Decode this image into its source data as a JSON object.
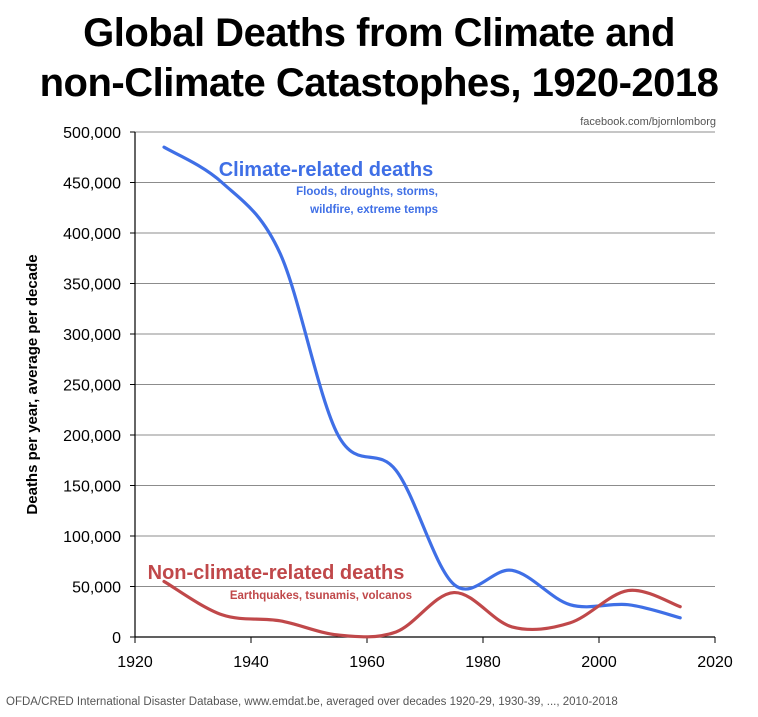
{
  "chart_data": {
    "type": "line",
    "title": "Global Deaths from Climate and non-Climate Catastophes, 1920-2018",
    "credit": "facebook.com/bjornlomborg",
    "source": "OFDA/CRED International Disaster Database, www.emdat.be, averaged over decades 1920-29, 1930-39, ..., 2010-2018",
    "ylabel": "Deaths per year, average per decade",
    "xlabel": "",
    "xlim": [
      1920,
      2020
    ],
    "ylim": [
      0,
      500000
    ],
    "x_ticks": [
      1920,
      1940,
      1960,
      1980,
      2000,
      2020
    ],
    "x_tick_labels": [
      "1920",
      "1940",
      "1960",
      "1980",
      "2000",
      "2020"
    ],
    "y_ticks": [
      0,
      50000,
      100000,
      150000,
      200000,
      250000,
      300000,
      350000,
      400000,
      450000,
      500000
    ],
    "y_tick_labels": [
      "0",
      "50,000",
      "100,000",
      "150,000",
      "200,000",
      "250,000",
      "300,000",
      "350,000",
      "400,000",
      "450,000",
      "500,000"
    ],
    "grid": "horizontal",
    "series": [
      {
        "name": "Climate-related deaths",
        "subtitle_lines": [
          "Floods, droughts, storms,",
          "wildfire, extreme temps"
        ],
        "color": "#3f6fe6",
        "x": [
          1925,
          1935,
          1945,
          1955,
          1965,
          1975,
          1985,
          1995,
          2005,
          2014
        ],
        "y": [
          485000,
          450000,
          380000,
          200000,
          165000,
          52000,
          66000,
          32000,
          32000,
          19000
        ]
      },
      {
        "name": "Non-climate-related deaths",
        "subtitle_lines": [
          "Earthquakes, tsunamis, volcanos"
        ],
        "color": "#c0484a",
        "x": [
          1925,
          1935,
          1945,
          1955,
          1965,
          1975,
          1985,
          1995,
          2005,
          2014
        ],
        "y": [
          55000,
          22000,
          16000,
          2000,
          5000,
          44000,
          10000,
          14000,
          46000,
          30000
        ]
      }
    ]
  }
}
